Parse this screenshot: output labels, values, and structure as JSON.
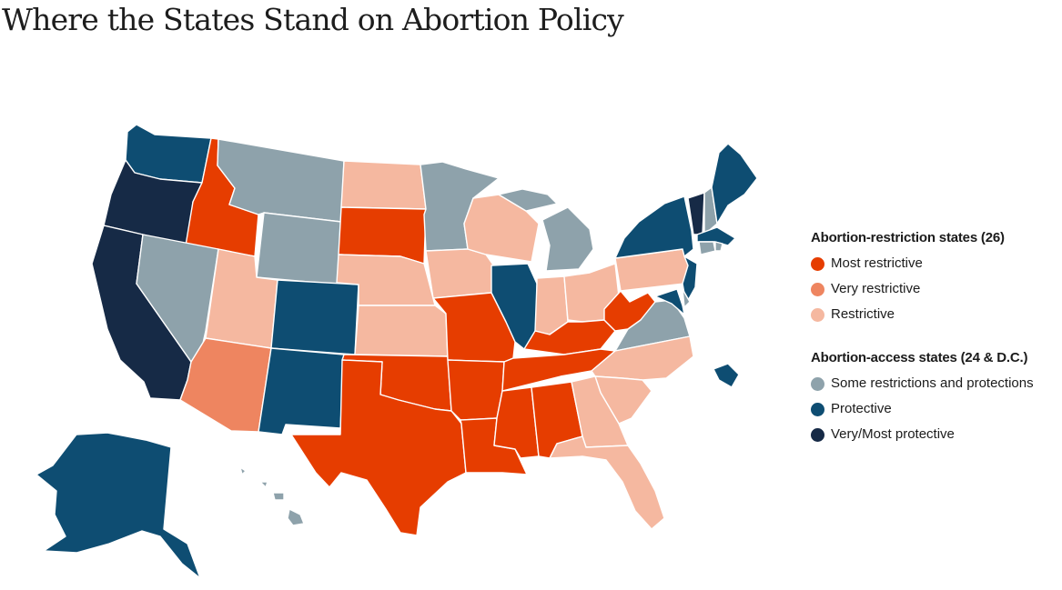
{
  "title": "Where the States Stand on Abortion Policy",
  "colors": {
    "most_restrictive": "#e63d00",
    "very_restrictive": "#ee8560",
    "restrictive": "#f5b8a0",
    "some_restrictions_and_protections": "#8ea2ab",
    "protective": "#0e4d72",
    "very_most_protective": "#162a46"
  },
  "legend": {
    "restriction": {
      "heading": "Abortion-restriction states (26)",
      "items": [
        {
          "key": "most_restrictive",
          "label": "Most restrictive"
        },
        {
          "key": "very_restrictive",
          "label": "Very restrictive"
        },
        {
          "key": "restrictive",
          "label": "Restrictive"
        }
      ]
    },
    "access": {
      "heading": "Abortion-access states (24 & D.C.)",
      "items": [
        {
          "key": "some_restrictions_and_protections",
          "label": "Some restrictions and protections"
        },
        {
          "key": "protective",
          "label": "Protective"
        },
        {
          "key": "very_most_protective",
          "label": "Very/Most protective"
        }
      ]
    }
  },
  "states": {
    "WA": "protective",
    "OR": "very_most_protective",
    "CA": "very_most_protective",
    "ID": "most_restrictive",
    "NV": "some_restrictions_and_protections",
    "MT": "some_restrictions_and_protections",
    "WY": "some_restrictions_and_protections",
    "UT": "restrictive",
    "AZ": "very_restrictive",
    "CO": "protective",
    "NM": "protective",
    "ND": "restrictive",
    "SD": "most_restrictive",
    "NE": "restrictive",
    "KS": "restrictive",
    "OK": "most_restrictive",
    "TX": "most_restrictive",
    "MN": "some_restrictions_and_protections",
    "IA": "restrictive",
    "MO": "most_restrictive",
    "AR": "most_restrictive",
    "LA": "most_restrictive",
    "WI": "restrictive",
    "IL": "protective",
    "MI": "some_restrictions_and_protections",
    "IN": "restrictive",
    "OH": "restrictive",
    "KY": "most_restrictive",
    "TN": "most_restrictive",
    "MS": "most_restrictive",
    "AL": "most_restrictive",
    "WV": "most_restrictive",
    "VA": "some_restrictions_and_protections",
    "NC": "restrictive",
    "SC": "restrictive",
    "GA": "restrictive",
    "FL": "restrictive",
    "PA": "restrictive",
    "NY": "protective",
    "NJ": "protective",
    "DE": "some_restrictions_and_protections",
    "MD": "protective",
    "DC": "protective",
    "CT": "some_restrictions_and_protections",
    "RI": "some_restrictions_and_protections",
    "MA": "protective",
    "VT": "very_most_protective",
    "NH": "some_restrictions_and_protections",
    "ME": "protective",
    "AK": "protective",
    "HI": "some_restrictions_and_protections"
  }
}
